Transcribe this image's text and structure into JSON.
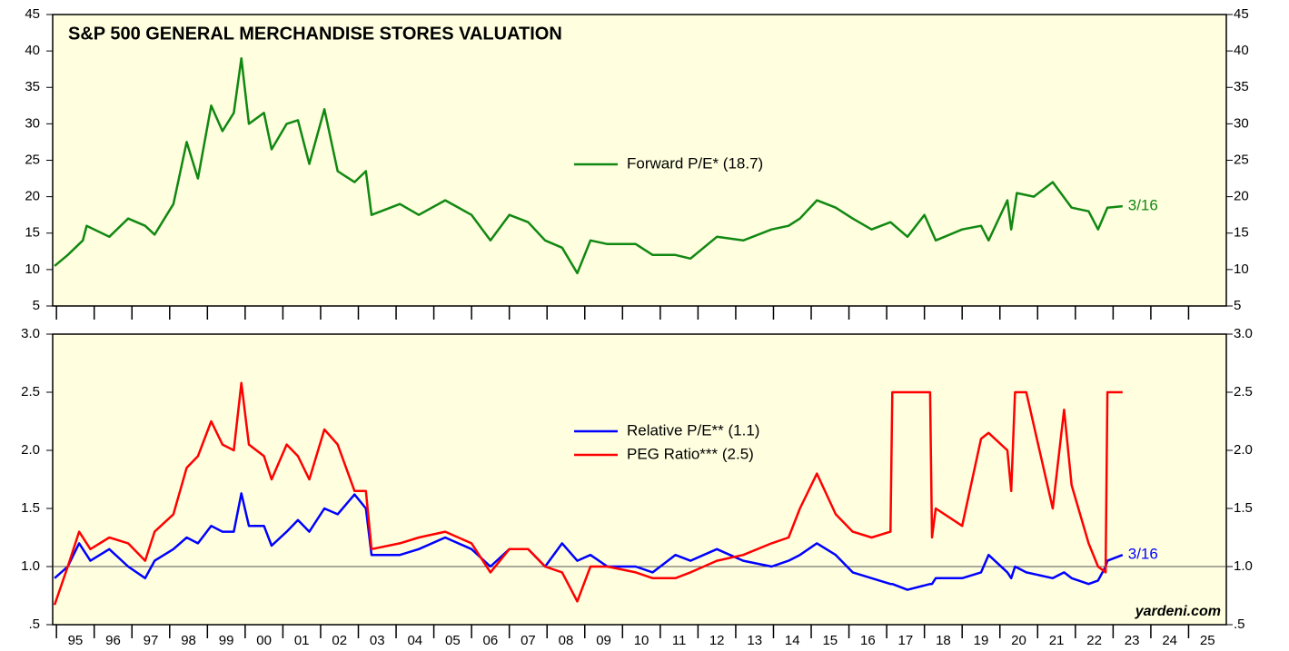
{
  "chart_data": [
    {
      "type": "line",
      "title": "S&P 500 GENERAL MERCHANDISE STORES VALUATION",
      "annotation": "3/16",
      "x": [
        1994.95,
        1995.3,
        1995.7,
        1995.8,
        1996.4,
        1996.9,
        1997.35,
        1997.6,
        1998.1,
        1998.45,
        1998.75,
        1999.1,
        1999.4,
        1999.7,
        1999.9,
        2000.1,
        2000.5,
        2000.7,
        2001.1,
        2001.4,
        2001.7,
        2002.1,
        2002.45,
        2002.9,
        2003.2,
        2003.35,
        2004.1,
        2004.6,
        2005.3,
        2006.0,
        2006.5,
        2007.0,
        2007.5,
        2007.95,
        2008.4,
        2008.8,
        2009.15,
        2009.6,
        2010.35,
        2010.8,
        2011.4,
        2011.8,
        2012.5,
        2013.2,
        2013.95,
        2014.4,
        2014.7,
        2015.15,
        2015.65,
        2016.1,
        2016.6,
        2017.1,
        2017.55,
        2018.0,
        2018.3,
        2019.0,
        2019.5,
        2019.7,
        2020.2,
        2020.3,
        2020.45,
        2020.9,
        2021.4,
        2021.9,
        2022.35,
        2022.6,
        2022.85,
        2023.25
      ],
      "series": [
        {
          "name": "Forward P/E* (18.7)",
          "color": "#118811",
          "values": [
            10.5,
            12,
            14,
            16,
            14.5,
            17,
            16,
            14.8,
            19,
            27.5,
            22.5,
            32.5,
            29,
            31.5,
            39,
            30,
            31.5,
            26.5,
            30,
            30.5,
            24.5,
            32,
            23.5,
            22,
            23.5,
            17.5,
            19,
            17.5,
            19.5,
            17.5,
            14,
            17.5,
            16.5,
            14,
            13,
            9.5,
            14,
            13.5,
            13.5,
            12,
            12,
            11.5,
            14.5,
            14,
            15.5,
            16,
            17,
            19.5,
            18.5,
            17,
            15.5,
            16.5,
            14.5,
            17.5,
            14,
            15.5,
            16,
            14,
            19.5,
            15.5,
            20.5,
            20,
            22,
            18.5,
            18,
            15.5,
            18.5,
            18.7
          ]
        }
      ],
      "xlim": [
        1994.9,
        2026
      ],
      "ylim": [
        5,
        45
      ],
      "yticks": [
        5,
        10,
        15,
        20,
        25,
        30,
        35,
        40,
        45
      ],
      "xticks": [
        {
          "value": 1995.5,
          "label": "95"
        },
        {
          "value": 1996.5,
          "label": "96"
        },
        {
          "value": 1997.5,
          "label": "97"
        },
        {
          "value": 1998.5,
          "label": "98"
        },
        {
          "value": 1999.5,
          "label": "99"
        },
        {
          "value": 2000.5,
          "label": "00"
        },
        {
          "value": 2001.5,
          "label": "01"
        },
        {
          "value": 2002.5,
          "label": "02"
        },
        {
          "value": 2003.5,
          "label": "03"
        },
        {
          "value": 2004.5,
          "label": "04"
        },
        {
          "value": 2005.5,
          "label": "05"
        },
        {
          "value": 2006.5,
          "label": "06"
        },
        {
          "value": 2007.5,
          "label": "07"
        },
        {
          "value": 2008.5,
          "label": "08"
        },
        {
          "value": 2009.5,
          "label": "09"
        },
        {
          "value": 2010.5,
          "label": "10"
        },
        {
          "value": 2011.5,
          "label": "11"
        },
        {
          "value": 2012.5,
          "label": "12"
        },
        {
          "value": 2013.5,
          "label": "13"
        },
        {
          "value": 2014.5,
          "label": "14"
        },
        {
          "value": 2015.5,
          "label": "15"
        },
        {
          "value": 2016.5,
          "label": "16"
        },
        {
          "value": 2017.5,
          "label": "17"
        },
        {
          "value": 2018.5,
          "label": "18"
        },
        {
          "value": 2019.5,
          "label": "19"
        },
        {
          "value": 2020.5,
          "label": "20"
        },
        {
          "value": 2021.5,
          "label": "21"
        },
        {
          "value": 2022.5,
          "label": "22"
        },
        {
          "value": 2023.5,
          "label": "23"
        },
        {
          "value": 2024.5,
          "label": "24"
        },
        {
          "value": 2025.5,
          "label": "25"
        }
      ]
    },
    {
      "type": "line",
      "annotation": "3/16",
      "source": "yardeni.com",
      "hline": 1,
      "x": [
        1994.95,
        1995.3,
        1995.6,
        1995.9,
        1996.4,
        1996.9,
        1997.35,
        1997.6,
        1998.1,
        1998.45,
        1998.75,
        1999.1,
        1999.4,
        1999.7,
        1999.9,
        2000.1,
        2000.5,
        2000.7,
        2001.1,
        2001.4,
        2001.7,
        2002.1,
        2002.45,
        2002.9,
        2003.2,
        2003.35,
        2004.1,
        2004.6,
        2005.3,
        2006.0,
        2006.5,
        2007.0,
        2007.5,
        2007.95,
        2008.4,
        2008.8,
        2009.15,
        2009.6,
        2010.35,
        2010.8,
        2011.4,
        2011.8,
        2012.5,
        2013.2,
        2013.95,
        2014.4,
        2014.7,
        2015.15,
        2015.65,
        2016.1,
        2016.6,
        2017.1,
        2017.15,
        2017.55,
        2018.15,
        2018.2,
        2018.3,
        2019.0,
        2019.5,
        2019.7,
        2020.2,
        2020.3,
        2020.4,
        2020.7,
        2021.4,
        2021.7,
        2021.9,
        2022.35,
        2022.6,
        2022.8,
        2022.85,
        2023.25
      ],
      "series": [
        {
          "name": "Relative P/E** (1.1)",
          "color": "#0000ff",
          "values": [
            0.9,
            1.0,
            1.2,
            1.05,
            1.15,
            1.0,
            0.9,
            1.05,
            1.15,
            1.25,
            1.2,
            1.35,
            1.3,
            1.3,
            1.63,
            1.35,
            1.35,
            1.18,
            1.3,
            1.4,
            1.3,
            1.5,
            1.45,
            1.62,
            1.5,
            1.1,
            1.1,
            1.15,
            1.25,
            1.15,
            1.0,
            1.15,
            1.15,
            1.0,
            1.2,
            1.05,
            1.1,
            1.0,
            1.0,
            0.95,
            1.1,
            1.05,
            1.15,
            1.05,
            1.0,
            1.05,
            1.1,
            1.2,
            1.1,
            0.95,
            0.9,
            0.85,
            0.85,
            0.8,
            0.85,
            0.85,
            0.9,
            0.9,
            0.95,
            1.1,
            0.95,
            0.9,
            1.0,
            0.95,
            0.9,
            0.95,
            0.9,
            0.85,
            0.88,
            1.0,
            1.05,
            1.1
          ]
        },
        {
          "name": "PEG Ratio*** (2.5)",
          "color": "#ff0000",
          "values": [
            0.67,
            1.0,
            1.3,
            1.15,
            1.25,
            1.2,
            1.05,
            1.3,
            1.45,
            1.85,
            1.95,
            2.25,
            2.05,
            2.0,
            2.58,
            2.05,
            1.95,
            1.75,
            2.05,
            1.95,
            1.75,
            2.18,
            2.05,
            1.65,
            1.65,
            1.15,
            1.2,
            1.25,
            1.3,
            1.2,
            0.95,
            1.15,
            1.15,
            1.0,
            0.95,
            0.7,
            1.0,
            1.0,
            0.95,
            0.9,
            0.9,
            0.95,
            1.05,
            1.1,
            1.2,
            1.25,
            1.5,
            1.8,
            1.45,
            1.3,
            1.25,
            1.3,
            2.5,
            2.5,
            2.5,
            1.25,
            1.5,
            1.35,
            2.1,
            2.15,
            2.0,
            1.65,
            2.5,
            2.5,
            1.5,
            2.35,
            1.7,
            1.2,
            1.0,
            0.95,
            2.5,
            2.5
          ]
        }
      ],
      "xlim": [
        1994.9,
        2026
      ],
      "ylim": [
        0.5,
        3.0
      ],
      "yticks": [
        {
          "value": 0.5,
          "label": ".5"
        },
        {
          "value": 1,
          "label": "1.0"
        },
        {
          "value": 1.5,
          "label": "1.5"
        },
        {
          "value": 2,
          "label": "2.0"
        },
        {
          "value": 2.5,
          "label": "2.5"
        },
        {
          "value": 3,
          "label": "3.0"
        }
      ],
      "xticks": [
        {
          "value": 1995.5,
          "label": "95"
        },
        {
          "value": 1996.5,
          "label": "96"
        },
        {
          "value": 1997.5,
          "label": "97"
        },
        {
          "value": 1998.5,
          "label": "98"
        },
        {
          "value": 1999.5,
          "label": "99"
        },
        {
          "value": 2000.5,
          "label": "00"
        },
        {
          "value": 2001.5,
          "label": "01"
        },
        {
          "value": 2002.5,
          "label": "02"
        },
        {
          "value": 2003.5,
          "label": "03"
        },
        {
          "value": 2004.5,
          "label": "04"
        },
        {
          "value": 2005.5,
          "label": "05"
        },
        {
          "value": 2006.5,
          "label": "06"
        },
        {
          "value": 2007.5,
          "label": "07"
        },
        {
          "value": 2008.5,
          "label": "08"
        },
        {
          "value": 2009.5,
          "label": "09"
        },
        {
          "value": 2010.5,
          "label": "10"
        },
        {
          "value": 2011.5,
          "label": "11"
        },
        {
          "value": 2012.5,
          "label": "12"
        },
        {
          "value": 2013.5,
          "label": "13"
        },
        {
          "value": 2014.5,
          "label": "14"
        },
        {
          "value": 2015.5,
          "label": "15"
        },
        {
          "value": 2016.5,
          "label": "16"
        },
        {
          "value": 2017.5,
          "label": "17"
        },
        {
          "value": 2018.5,
          "label": "18"
        },
        {
          "value": 2019.5,
          "label": "19"
        },
        {
          "value": 2020.5,
          "label": "20"
        },
        {
          "value": 2021.5,
          "label": "21"
        },
        {
          "value": 2022.5,
          "label": "22"
        },
        {
          "value": 2023.5,
          "label": "23"
        },
        {
          "value": 2024.5,
          "label": "24"
        },
        {
          "value": 2025.5,
          "label": "25"
        }
      ]
    }
  ]
}
